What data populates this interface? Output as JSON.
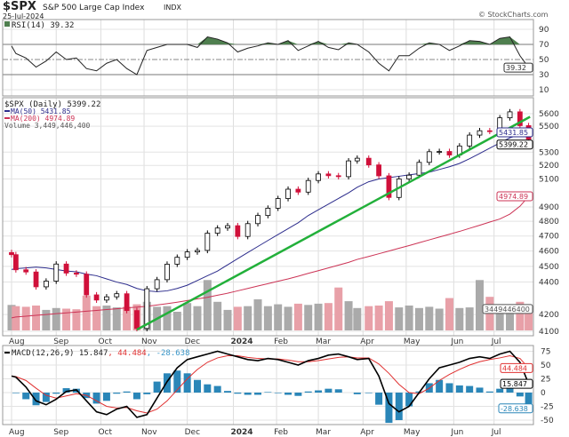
{
  "header": {
    "symbol": "$SPX",
    "name": "S&P 500 Large Cap Index",
    "exchange": "INDX",
    "date": "25-Jul-2024",
    "watermark": "© StockCharts.com"
  },
  "legend": {
    "rsi": "RSI(14) 39.32",
    "price": "$SPX (Daily) 5399.22",
    "ma50": "MA(50) 5431.85",
    "ma200": "MA(200) 4974.89",
    "volume": "Volume 3,449,446,400",
    "macd_prefix": "MACD(12,26,9) 15.847",
    "macd_signal": ", 44.484",
    "macd_hist": ", -28.638"
  },
  "tags": {
    "rsi": "39.32",
    "ma50": "5431.85",
    "close": "5399.22",
    "ma200": "4974.89",
    "volume": "3449446400",
    "macd": "15.847",
    "signal": "44.484",
    "hist": "-28.638"
  },
  "colors": {
    "up": "#000000",
    "down": "#d0103a",
    "ma50": "#2c2c8c",
    "ma200": "#cc3355",
    "trendline": "#22b03a",
    "rsi_fill": "#4f7f4f",
    "volume_up": "#aaaaaa",
    "volume_down": "#e8a0a8",
    "macd": "#000000",
    "signal": "#e03030",
    "hist": "#2a86b8"
  },
  "chart_data": {
    "type": "candlestick",
    "price_scale": "log",
    "grid": true,
    "x_ticks": [
      {
        "label": "Aug",
        "date": "2023-08-01"
      },
      {
        "label": "Sep",
        "date": "2023-09-01"
      },
      {
        "label": "Oct",
        "date": "2023-10-02"
      },
      {
        "label": "Nov",
        "date": "2023-11-01"
      },
      {
        "label": "Dec",
        "date": "2023-12-01"
      },
      {
        "label": "2024",
        "date": "2024-01-02"
      },
      {
        "label": "Feb",
        "date": "2024-02-01"
      },
      {
        "label": "Mar",
        "date": "2024-03-01"
      },
      {
        "label": "Apr",
        "date": "2024-04-01"
      },
      {
        "label": "May",
        "date": "2024-05-01"
      },
      {
        "label": "Jun",
        "date": "2024-06-03"
      },
      {
        "label": "Jul",
        "date": "2024-07-01"
      }
    ],
    "price_ticks": [
      "5600",
      "5500",
      "5300",
      "5200",
      "5100",
      "4900",
      "4800",
      "4700",
      "4600",
      "4500",
      "4400",
      "4200",
      "4100"
    ],
    "rsi_ticks": [
      "90",
      "70",
      "50",
      "30",
      "10"
    ],
    "macd_ticks": [
      "75",
      "50",
      "25",
      "0",
      "-25",
      "-50"
    ],
    "dates": [
      "2023-08-01",
      "2023-08-04",
      "2023-08-11",
      "2023-08-18",
      "2023-08-25",
      "2023-09-01",
      "2023-09-08",
      "2023-09-15",
      "2023-09-22",
      "2023-09-29",
      "2023-10-06",
      "2023-10-13",
      "2023-10-20",
      "2023-10-27",
      "2023-11-03",
      "2023-11-10",
      "2023-11-17",
      "2023-11-24",
      "2023-12-01",
      "2023-12-08",
      "2023-12-15",
      "2023-12-22",
      "2023-12-29",
      "2024-01-05",
      "2024-01-12",
      "2024-01-19",
      "2024-01-26",
      "2024-02-02",
      "2024-02-09",
      "2024-02-16",
      "2024-02-23",
      "2024-03-01",
      "2024-03-08",
      "2024-03-15",
      "2024-03-22",
      "2024-03-28",
      "2024-04-05",
      "2024-04-12",
      "2024-04-19",
      "2024-04-26",
      "2024-05-03",
      "2024-05-10",
      "2024-05-17",
      "2024-05-24",
      "2024-05-31",
      "2024-06-07",
      "2024-06-14",
      "2024-06-21",
      "2024-06-28",
      "2024-07-05",
      "2024-07-12",
      "2024-07-19",
      "2024-07-25"
    ],
    "close": [
      4576,
      4478,
      4464,
      4370,
      4406,
      4515,
      4457,
      4450,
      4320,
      4288,
      4308,
      4327,
      4224,
      4117,
      4358,
      4415,
      4514,
      4559,
      4594,
      4604,
      4719,
      4754,
      4770,
      4697,
      4784,
      4840,
      4891,
      4959,
      5026,
      5005,
      5089,
      5137,
      5124,
      5117,
      5234,
      5254,
      5204,
      5123,
      4967,
      5100,
      5128,
      5223,
      5303,
      5305,
      5278,
      5347,
      5431,
      5465,
      5460,
      5567,
      5615,
      5505,
      5399.22
    ],
    "ma50": [
      4480,
      4485,
      4490,
      4495,
      4490,
      4480,
      4470,
      4465,
      4450,
      4440,
      4420,
      4400,
      4385,
      4360,
      4345,
      4340,
      4345,
      4360,
      4380,
      4410,
      4440,
      4470,
      4510,
      4550,
      4590,
      4630,
      4670,
      4710,
      4750,
      4790,
      4840,
      4880,
      4920,
      4960,
      5000,
      5040,
      5080,
      5100,
      5110,
      5120,
      5130,
      5140,
      5150,
      5170,
      5190,
      5215,
      5250,
      5290,
      5330,
      5370,
      5410,
      5435,
      5431.85
    ],
    "ma200": [
      4180,
      4185,
      4190,
      4195,
      4200,
      4205,
      4210,
      4215,
      4220,
      4225,
      4230,
      4235,
      4240,
      4245,
      4250,
      4258,
      4266,
      4275,
      4285,
      4295,
      4305,
      4318,
      4330,
      4345,
      4360,
      4375,
      4390,
      4405,
      4420,
      4437,
      4455,
      4472,
      4490,
      4508,
      4526,
      4545,
      4564,
      4582,
      4600,
      4618,
      4636,
      4655,
      4674,
      4693,
      4712,
      4731,
      4752,
      4773,
      4795,
      4816,
      4850,
      4905,
      4974.89
    ],
    "volume_billions": [
      4.1,
      3.9,
      3.8,
      4.0,
      3.3,
      3.6,
      3.5,
      3.4,
      5.6,
      3.9,
      4.0,
      3.7,
      3.8,
      4.2,
      4.6,
      3.8,
      3.9,
      3.0,
      4.4,
      3.9,
      8.1,
      4.6,
      3.3,
      3.8,
      3.9,
      5.0,
      3.9,
      4.2,
      3.8,
      4.3,
      4.1,
      4.3,
      4.4,
      6.9,
      4.7,
      3.6,
      3.9,
      4.0,
      4.7,
      3.7,
      4.0,
      3.6,
      3.8,
      3.5,
      5.2,
      3.6,
      3.7,
      8.1,
      5.4,
      3.0,
      3.7,
      4.6,
      3.4494464
    ],
    "rsi": [
      68,
      58,
      52,
      40,
      48,
      60,
      50,
      52,
      38,
      35,
      45,
      50,
      38,
      30,
      62,
      66,
      70,
      70,
      70,
      66,
      80,
      77,
      72,
      60,
      65,
      68,
      72,
      70,
      75,
      62,
      68,
      74,
      66,
      63,
      72,
      70,
      60,
      45,
      35,
      55,
      55,
      65,
      72,
      70,
      62,
      68,
      75,
      74,
      70,
      78,
      80,
      55,
      39.32
    ],
    "macd": [
      30,
      28,
      10,
      -15,
      -22,
      -12,
      2,
      5,
      -15,
      -35,
      -40,
      -30,
      -25,
      -45,
      -40,
      -10,
      20,
      45,
      60,
      65,
      70,
      75,
      70,
      65,
      60,
      58,
      62,
      60,
      55,
      50,
      58,
      62,
      68,
      70,
      65,
      60,
      62,
      30,
      -20,
      -35,
      -25,
      0,
      25,
      45,
      50,
      55,
      62,
      65,
      62,
      70,
      75,
      55,
      15.847
    ],
    "signal": [
      30,
      29,
      22,
      8,
      -5,
      -10,
      -6,
      -2,
      -5,
      -15,
      -25,
      -28,
      -27,
      -33,
      -37,
      -30,
      -15,
      5,
      25,
      42,
      55,
      63,
      67,
      67,
      64,
      62,
      61,
      61,
      59,
      56,
      56,
      58,
      61,
      64,
      65,
      63,
      63,
      52,
      35,
      15,
      0,
      -2,
      8,
      22,
      33,
      42,
      50,
      56,
      60,
      63,
      67,
      62,
      44.484
    ],
    "trendline": [
      [
        "2023-10-27",
        4110
      ],
      [
        "2024-07-26",
        5575
      ]
    ]
  }
}
